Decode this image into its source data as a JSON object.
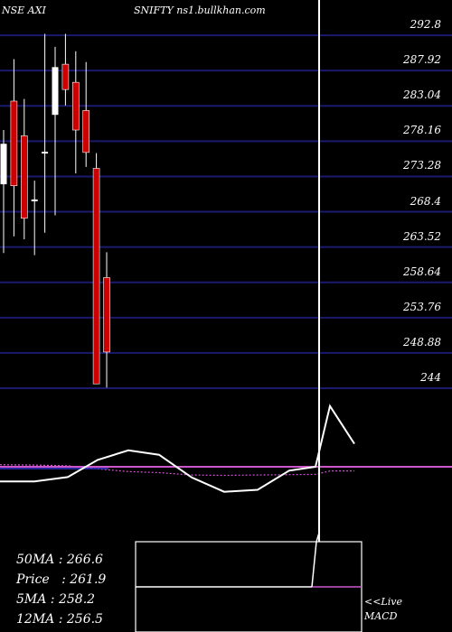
{
  "header": {
    "symbol": "NSE AXI",
    "site": "SNIFTY ns1.bullkhan.com"
  },
  "price_panel": {
    "y_ticks": [
      "292.8",
      "287.92",
      "283.04",
      "278.16",
      "273.28",
      "268.4",
      "263.52",
      "258.64",
      "253.76",
      "248.88",
      "244"
    ],
    "ylim": [
      244,
      297.68
    ]
  },
  "info": {
    "ma50": "50MA : 266.6",
    "price": "Price   : 261.9",
    "ma5": "5MA : 258.2",
    "ma12": "12MA : 256.5"
  },
  "live_label": [
    "<<Live",
    "MACD"
  ],
  "colors": {
    "background": "#000000",
    "up": "#ffffff",
    "down": "#cc0000",
    "grid": "#1a1a6e",
    "ma_line": "#cc55cc",
    "signal_line": "#3333cc",
    "text": "#ffffff"
  },
  "chart_data": [
    {
      "type": "candlestick",
      "ylim": [
        244,
        297.68
      ],
      "y_ticks": [
        292.8,
        287.92,
        283.04,
        278.16,
        273.28,
        268.4,
        263.52,
        258.64,
        253.76,
        248.88,
        244
      ],
      "candles": [
        {
          "open": 272.2,
          "high": 279.7,
          "low": 262.7,
          "close": 277.8
        },
        {
          "open": 283.7,
          "high": 289.5,
          "low": 265.0,
          "close": 272.0
        },
        {
          "open": 278.9,
          "high": 284.0,
          "low": 264.6,
          "close": 267.5
        },
        {
          "open": 270.0,
          "high": 272.7,
          "low": 262.4,
          "close": 270.1
        },
        {
          "open": 276.6,
          "high": 293.0,
          "low": 265.5,
          "close": 276.7
        },
        {
          "open": 281.8,
          "high": 291.2,
          "low": 267.9,
          "close": 288.4
        },
        {
          "open": 288.8,
          "high": 293.0,
          "low": 283.1,
          "close": 285.3
        },
        {
          "open": 286.3,
          "high": 290.6,
          "low": 273.7,
          "close": 279.7
        },
        {
          "open": 282.4,
          "high": 289.1,
          "low": 274.6,
          "close": 276.6
        },
        {
          "open": 274.4,
          "high": 276.5,
          "low": 244.6,
          "close": 244.6
        },
        {
          "open": 259.3,
          "high": 262.8,
          "low": 244.1,
          "close": 249.0
        }
      ]
    },
    {
      "type": "line",
      "series": [
        {
          "values": [
            0.43,
            0.43,
            0.3,
            -0.2,
            -0.48,
            -0.35,
            0.31,
            0.73,
            0.67,
            0.11,
            0.0,
            -1.77,
            -0.67
          ]
        },
        {
          "values": [
            -0.06,
            -0.05,
            -0.03,
            0.06,
            0.14,
            0.17,
            0.24,
            0.25,
            0.24,
            0.23,
            0.22,
            0.12,
            0.12
          ]
        }
      ]
    }
  ]
}
